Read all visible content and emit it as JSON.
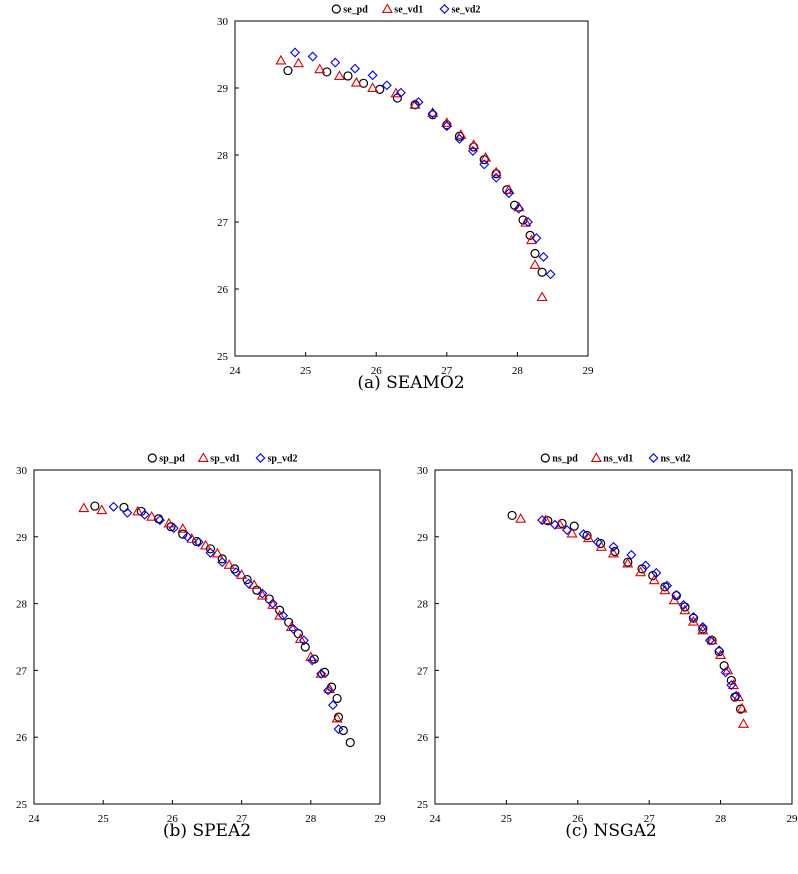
{
  "chart_data": [
    {
      "type": "scatter",
      "caption": "(a) SEAMO2",
      "xlim": [
        24,
        29
      ],
      "ylim": [
        25,
        30
      ],
      "xticks": [
        "24",
        "25",
        "26",
        "27",
        "28",
        "29"
      ],
      "yticks": [
        "25",
        "26",
        "27",
        "28",
        "29",
        "30"
      ],
      "legend_position": "top-center",
      "series": [
        {
          "name": "se_pd",
          "marker": "circle",
          "color": "#000000",
          "x": [
            24.75,
            25.3,
            25.6,
            25.82,
            26.05,
            26.3,
            26.55,
            26.8,
            27.0,
            27.18,
            27.38,
            27.53,
            27.7,
            27.85,
            27.96,
            28.08,
            28.18,
            28.25,
            28.35
          ],
          "y": [
            29.26,
            29.24,
            29.18,
            29.07,
            28.98,
            28.85,
            28.75,
            28.6,
            28.45,
            28.28,
            28.12,
            27.93,
            27.72,
            27.48,
            27.25,
            27.03,
            26.8,
            26.53,
            26.25
          ]
        },
        {
          "name": "se_vd1",
          "marker": "triangle",
          "color": "#e00000",
          "x": [
            24.65,
            24.9,
            25.2,
            25.48,
            25.72,
            25.95,
            26.28,
            26.55,
            26.8,
            27.0,
            27.2,
            27.38,
            27.55,
            27.7,
            27.88,
            28.02,
            28.12,
            28.2,
            28.25,
            28.35
          ],
          "y": [
            29.41,
            29.37,
            29.28,
            29.18,
            29.08,
            29.0,
            28.92,
            28.75,
            28.63,
            28.48,
            28.3,
            28.15,
            27.96,
            27.74,
            27.48,
            27.22,
            26.99,
            26.73,
            26.36,
            25.88
          ]
        },
        {
          "name": "se_vd2",
          "marker": "diamond",
          "color": "#0000ee",
          "x": [
            24.85,
            25.1,
            25.42,
            25.7,
            25.95,
            26.15,
            26.35,
            26.6,
            26.8,
            27.0,
            27.18,
            27.37,
            27.53,
            27.7,
            27.88,
            28.02,
            28.15,
            28.27,
            28.37,
            28.47
          ],
          "y": [
            29.53,
            29.47,
            29.38,
            29.29,
            29.19,
            29.04,
            28.93,
            28.79,
            28.62,
            28.43,
            28.24,
            28.06,
            27.86,
            27.66,
            27.43,
            27.2,
            27.0,
            26.76,
            26.48,
            26.22
          ]
        }
      ]
    },
    {
      "type": "scatter",
      "caption": "(b) SPEA2",
      "xlim": [
        24,
        29
      ],
      "ylim": [
        25,
        30
      ],
      "xticks": [
        "24",
        "25",
        "26",
        "27",
        "28",
        "29"
      ],
      "yticks": [
        "25",
        "26",
        "27",
        "28",
        "29",
        "30"
      ],
      "legend_position": "top-right",
      "series": [
        {
          "name": "sp_pd",
          "marker": "circle",
          "color": "#000000",
          "x": [
            24.88,
            25.3,
            25.55,
            25.8,
            25.98,
            26.15,
            26.35,
            26.55,
            26.72,
            26.9,
            27.08,
            27.22,
            27.4,
            27.55,
            27.68,
            27.82,
            27.92,
            28.05,
            28.2,
            28.3,
            28.38,
            28.4,
            28.47,
            28.57
          ],
          "y": [
            29.46,
            29.44,
            29.38,
            29.27,
            29.15,
            29.04,
            28.93,
            28.82,
            28.67,
            28.52,
            28.36,
            28.2,
            28.07,
            27.9,
            27.72,
            27.55,
            27.35,
            27.17,
            26.97,
            26.75,
            26.58,
            26.3,
            26.1,
            25.92
          ]
        },
        {
          "name": "sp_vd1",
          "marker": "triangle",
          "color": "#e00000",
          "x": [
            24.72,
            24.98,
            25.5,
            25.7,
            25.95,
            26.15,
            26.28,
            26.48,
            26.65,
            26.82,
            27.0,
            27.18,
            27.3,
            27.45,
            27.55,
            27.72,
            27.85,
            28.0,
            28.15,
            28.27,
            28.38
          ],
          "y": [
            29.43,
            29.4,
            29.38,
            29.3,
            29.2,
            29.12,
            28.97,
            28.87,
            28.75,
            28.58,
            28.43,
            28.28,
            28.12,
            27.98,
            27.82,
            27.65,
            27.47,
            27.2,
            26.95,
            26.72,
            26.28
          ]
        },
        {
          "name": "sp_vd2",
          "marker": "diamond",
          "color": "#0000ee",
          "x": [
            25.15,
            25.35,
            25.6,
            25.82,
            26.02,
            26.22,
            26.38,
            26.55,
            26.72,
            26.92,
            27.1,
            27.3,
            27.45,
            27.6,
            27.75,
            27.9,
            28.02,
            28.15,
            28.25,
            28.32,
            28.4
          ],
          "y": [
            29.45,
            29.36,
            29.33,
            29.25,
            29.13,
            29.0,
            28.92,
            28.76,
            28.62,
            28.47,
            28.3,
            28.15,
            28.0,
            27.82,
            27.62,
            27.45,
            27.15,
            26.95,
            26.7,
            26.48,
            26.12
          ]
        }
      ]
    },
    {
      "type": "scatter",
      "caption": "(c) NSGA2",
      "xlim": [
        24,
        29
      ],
      "ylim": [
        25,
        30
      ],
      "xticks": [
        "24",
        "25",
        "26",
        "27",
        "28",
        "29"
      ],
      "yticks": [
        "25",
        "26",
        "27",
        "28",
        "29",
        "30"
      ],
      "legend_position": "top-center",
      "series": [
        {
          "name": "ns_pd",
          "marker": "circle",
          "color": "#000000",
          "x": [
            25.08,
            25.58,
            25.78,
            25.95,
            26.13,
            26.32,
            26.52,
            26.7,
            26.9,
            27.05,
            27.22,
            27.38,
            27.5,
            27.62,
            27.75,
            27.88,
            27.98,
            28.05,
            28.15,
            28.2,
            28.28
          ],
          "y": [
            29.32,
            29.24,
            29.2,
            29.16,
            29.02,
            28.9,
            28.78,
            28.62,
            28.52,
            28.42,
            28.25,
            28.12,
            27.95,
            27.78,
            27.62,
            27.45,
            27.28,
            27.07,
            26.85,
            26.6,
            26.42
          ]
        },
        {
          "name": "ns_vd1",
          "marker": "triangle",
          "color": "#e00000",
          "x": [
            25.2,
            25.55,
            25.75,
            25.92,
            26.15,
            26.33,
            26.5,
            26.7,
            26.88,
            27.07,
            27.22,
            27.35,
            27.5,
            27.62,
            27.75,
            27.88,
            28.0,
            28.1,
            28.18,
            28.25,
            28.3,
            28.32
          ],
          "y": [
            29.27,
            29.25,
            29.18,
            29.05,
            28.98,
            28.85,
            28.75,
            28.6,
            28.47,
            28.35,
            28.2,
            28.05,
            27.9,
            27.73,
            27.6,
            27.45,
            27.23,
            27.0,
            26.78,
            26.6,
            26.43,
            26.2
          ]
        },
        {
          "name": "ns_vd2",
          "marker": "diamond",
          "color": "#0000ee",
          "x": [
            25.5,
            25.68,
            25.85,
            26.08,
            26.28,
            26.5,
            26.75,
            26.95,
            27.1,
            27.25,
            27.38,
            27.48,
            27.62,
            27.75,
            27.85,
            27.98,
            28.07,
            28.15,
            28.22
          ],
          "y": [
            29.25,
            29.18,
            29.1,
            29.04,
            28.92,
            28.85,
            28.73,
            28.57,
            28.46,
            28.27,
            28.13,
            27.98,
            27.8,
            27.65,
            27.45,
            27.3,
            26.97,
            26.78,
            26.62
          ]
        }
      ]
    }
  ]
}
